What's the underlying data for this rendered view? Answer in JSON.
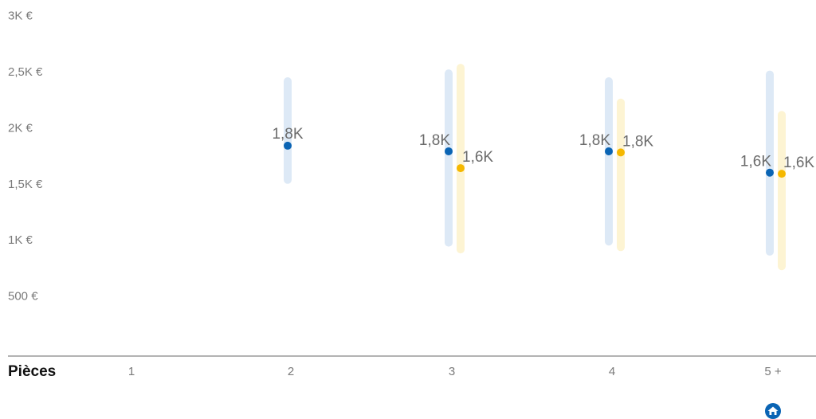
{
  "chart_data": {
    "type": "scatter",
    "xlabel": "Pièces",
    "categories": [
      "1",
      "2",
      "3",
      "4",
      "5 +"
    ],
    "y_ticks": [
      "500 €",
      "1K €",
      "1,5K €",
      "2K €",
      "2,5K €",
      "3K €"
    ],
    "ylim": [
      0,
      3000
    ],
    "grid": false,
    "colors": {
      "series_a": "#0a64b4",
      "series_a_range": "#dde9f6",
      "series_b": "#f5b800",
      "series_b_range": "#fdf4d3",
      "axis_line": "#9a9a9a"
    },
    "series": [
      {
        "points": [
          {
            "category": "2",
            "value": 1840,
            "low": 1500,
            "high": 2450,
            "label": "1,8K"
          },
          {
            "category": "3",
            "value": 1790,
            "low": 940,
            "high": 2520,
            "label": "1,8K"
          },
          {
            "category": "4",
            "value": 1790,
            "low": 950,
            "high": 2450,
            "label": "1,8K"
          },
          {
            "category": "5 +",
            "value": 1600,
            "low": 860,
            "high": 2510,
            "label": "1,6K"
          }
        ]
      },
      {
        "points": [
          {
            "category": "3",
            "value": 1640,
            "low": 880,
            "high": 2570,
            "label": "1,6K"
          },
          {
            "category": "4",
            "value": 1780,
            "low": 900,
            "high": 2260,
            "label": "1,8K"
          },
          {
            "category": "5 +",
            "value": 1590,
            "low": 730,
            "high": 2150,
            "label": "1,6K"
          }
        ]
      }
    ],
    "footer_icon": "home-icon"
  }
}
